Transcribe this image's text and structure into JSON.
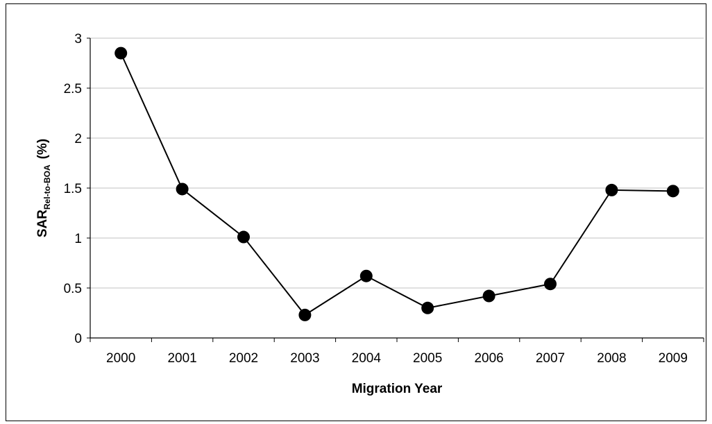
{
  "chart_data": {
    "type": "line",
    "title": "",
    "xlabel": "Migration Year",
    "ylabel": {
      "main": "SAR",
      "subscript": "Rel-to-BOA",
      "suffix": "(%)"
    },
    "categories": [
      "2000",
      "2001",
      "2002",
      "2003",
      "2004",
      "2005",
      "2006",
      "2007",
      "2008",
      "2009"
    ],
    "series": [
      {
        "values": [
          2.85,
          1.49,
          1.01,
          0.23,
          0.62,
          0.3,
          0.42,
          0.54,
          1.48,
          1.47
        ]
      }
    ],
    "ylim": [
      0,
      3
    ],
    "yticks": [
      0,
      0.5,
      1,
      1.5,
      2,
      2.5,
      3
    ],
    "ytick_labels": [
      "0",
      "0.5",
      "1",
      "1.5",
      "2",
      "2.5",
      "3"
    ],
    "grid": "horizontal",
    "legend": "none",
    "colors": {
      "line": "#000000",
      "marker": "#000000",
      "grid": "#c0c0c0",
      "axis": "#000000"
    }
  }
}
